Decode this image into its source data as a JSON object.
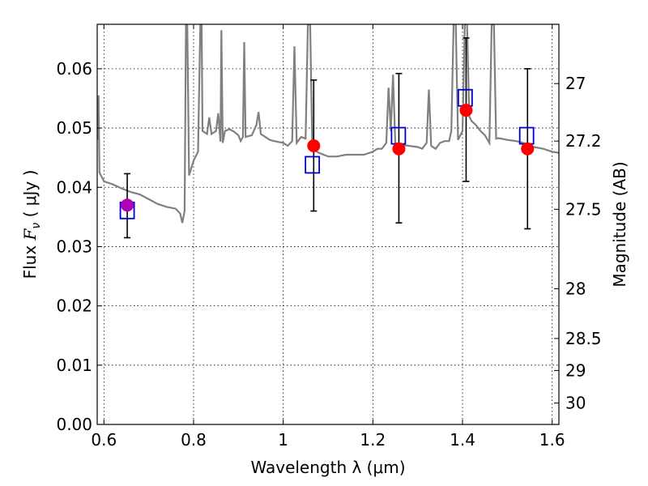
{
  "chart_data": {
    "type": "scatter",
    "xlabel": "Wavelength  λ (μm)",
    "ylabel": "Flux  F_ν  ( μJy )",
    "y2label": "Magnitude (AB)",
    "xlim": [
      0.585,
      1.615
    ],
    "ylim": [
      0.0,
      0.0675
    ],
    "grid": true,
    "x_ticks": [
      0.6,
      0.8,
      1.0,
      1.2,
      1.4,
      1.6
    ],
    "x_tick_labels": [
      "0.6",
      "0.8",
      "1",
      "1.2",
      "1.4",
      "1.6"
    ],
    "y_ticks": [
      0.0,
      0.01,
      0.02,
      0.03,
      0.04,
      0.05,
      0.06
    ],
    "y_tick_labels": [
      "0.00",
      "0.01",
      "0.02",
      "0.03",
      "0.04",
      "0.05",
      "0.06"
    ],
    "y2_ticks": [
      {
        "label": "27",
        "flux": 0.0575
      },
      {
        "label": "27.2",
        "flux": 0.0478
      },
      {
        "label": "27.5",
        "flux": 0.0363
      },
      {
        "label": "28",
        "flux": 0.0229
      },
      {
        "label": "28.5",
        "flux": 0.0145
      },
      {
        "label": "29",
        "flux": 0.0091
      },
      {
        "label": "30",
        "flux": 0.0036
      }
    ],
    "series": [
      {
        "kind": "line",
        "color": "#808080",
        "points": [
          [
            0.585,
            0.048
          ],
          [
            0.588,
            0.0555
          ],
          [
            0.59,
            0.0425
          ],
          [
            0.6,
            0.041
          ],
          [
            0.62,
            0.0405
          ],
          [
            0.64,
            0.0398
          ],
          [
            0.66,
            0.0392
          ],
          [
            0.68,
            0.0388
          ],
          [
            0.7,
            0.038
          ],
          [
            0.72,
            0.0372
          ],
          [
            0.74,
            0.0367
          ],
          [
            0.76,
            0.0364
          ],
          [
            0.77,
            0.0356
          ],
          [
            0.775,
            0.034
          ],
          [
            0.78,
            0.036
          ],
          [
            0.783,
            0.0675
          ],
          [
            0.786,
            0.0675
          ],
          [
            0.79,
            0.042
          ],
          [
            0.8,
            0.0445
          ],
          [
            0.81,
            0.046
          ],
          [
            0.815,
            0.0675
          ],
          [
            0.818,
            0.0675
          ],
          [
            0.82,
            0.0495
          ],
          [
            0.83,
            0.049
          ],
          [
            0.835,
            0.0518
          ],
          [
            0.84,
            0.049
          ],
          [
            0.85,
            0.0495
          ],
          [
            0.855,
            0.0525
          ],
          [
            0.86,
            0.0477
          ],
          [
            0.862,
            0.0665
          ],
          [
            0.865,
            0.0475
          ],
          [
            0.87,
            0.0495
          ],
          [
            0.88,
            0.0498
          ],
          [
            0.89,
            0.0494
          ],
          [
            0.9,
            0.0488
          ],
          [
            0.905,
            0.0478
          ],
          [
            0.91,
            0.0485
          ],
          [
            0.913,
            0.0645
          ],
          [
            0.916,
            0.0485
          ],
          [
            0.93,
            0.0488
          ],
          [
            0.94,
            0.0505
          ],
          [
            0.945,
            0.0527
          ],
          [
            0.95,
            0.049
          ],
          [
            0.96,
            0.0485
          ],
          [
            0.97,
            0.048
          ],
          [
            0.98,
            0.0478
          ],
          [
            1.0,
            0.0475
          ],
          [
            1.01,
            0.047
          ],
          [
            1.02,
            0.0478
          ],
          [
            1.025,
            0.0638
          ],
          [
            1.03,
            0.0475
          ],
          [
            1.04,
            0.0485
          ],
          [
            1.05,
            0.0482
          ],
          [
            1.055,
            0.0675
          ],
          [
            1.06,
            0.0675
          ],
          [
            1.065,
            0.0465
          ],
          [
            1.08,
            0.0458
          ],
          [
            1.1,
            0.0452
          ],
          [
            1.12,
            0.0452
          ],
          [
            1.14,
            0.0455
          ],
          [
            1.16,
            0.0455
          ],
          [
            1.18,
            0.0455
          ],
          [
            1.2,
            0.046
          ],
          [
            1.21,
            0.0465
          ],
          [
            1.22,
            0.0465
          ],
          [
            1.23,
            0.0475
          ],
          [
            1.235,
            0.0568
          ],
          [
            1.24,
            0.0495
          ],
          [
            1.245,
            0.059
          ],
          [
            1.25,
            0.0475
          ],
          [
            1.26,
            0.0472
          ],
          [
            1.28,
            0.047
          ],
          [
            1.3,
            0.0468
          ],
          [
            1.31,
            0.0465
          ],
          [
            1.32,
            0.0475
          ],
          [
            1.325,
            0.0565
          ],
          [
            1.33,
            0.047
          ],
          [
            1.34,
            0.0465
          ],
          [
            1.35,
            0.0475
          ],
          [
            1.36,
            0.0478
          ],
          [
            1.37,
            0.0478
          ],
          [
            1.375,
            0.0495
          ],
          [
            1.38,
            0.0675
          ],
          [
            1.385,
            0.0675
          ],
          [
            1.39,
            0.048
          ],
          [
            1.4,
            0.0495
          ],
          [
            1.405,
            0.0675
          ],
          [
            1.41,
            0.0675
          ],
          [
            1.415,
            0.052
          ],
          [
            1.42,
            0.0512
          ],
          [
            1.43,
            0.0505
          ],
          [
            1.44,
            0.0495
          ],
          [
            1.45,
            0.0488
          ],
          [
            1.46,
            0.0475
          ],
          [
            1.465,
            0.0675
          ],
          [
            1.47,
            0.0675
          ],
          [
            1.475,
            0.0482
          ],
          [
            1.48,
            0.0483
          ],
          [
            1.5,
            0.048
          ],
          [
            1.52,
            0.0478
          ],
          [
            1.54,
            0.0474
          ],
          [
            1.55,
            0.047
          ],
          [
            1.56,
            0.0468
          ],
          [
            1.58,
            0.0465
          ],
          [
            1.6,
            0.046
          ],
          [
            1.615,
            0.0458
          ]
        ]
      },
      {
        "kind": "errorbar",
        "color": "#000000",
        "points": [
          {
            "x": 0.652,
            "low": 0.0315,
            "high": 0.0423
          },
          {
            "x": 1.068,
            "low": 0.036,
            "high": 0.0581
          },
          {
            "x": 1.258,
            "low": 0.034,
            "high": 0.0592
          },
          {
            "x": 1.408,
            "low": 0.041,
            "high": 0.0652
          },
          {
            "x": 1.545,
            "low": 0.033,
            "high": 0.06
          }
        ]
      },
      {
        "kind": "open-square",
        "color": "#0000cc",
        "points": [
          [
            0.652,
            0.0361
          ],
          [
            1.065,
            0.0438
          ],
          [
            1.257,
            0.0487
          ],
          [
            1.406,
            0.0551
          ],
          [
            1.543,
            0.0487
          ]
        ]
      },
      {
        "kind": "filled-circle",
        "color": "#ff0000",
        "points": [
          [
            0.652,
            0.037
          ],
          [
            1.068,
            0.047
          ],
          [
            1.258,
            0.0465
          ],
          [
            1.408,
            0.053
          ],
          [
            1.545,
            0.0465
          ]
        ]
      }
    ]
  }
}
